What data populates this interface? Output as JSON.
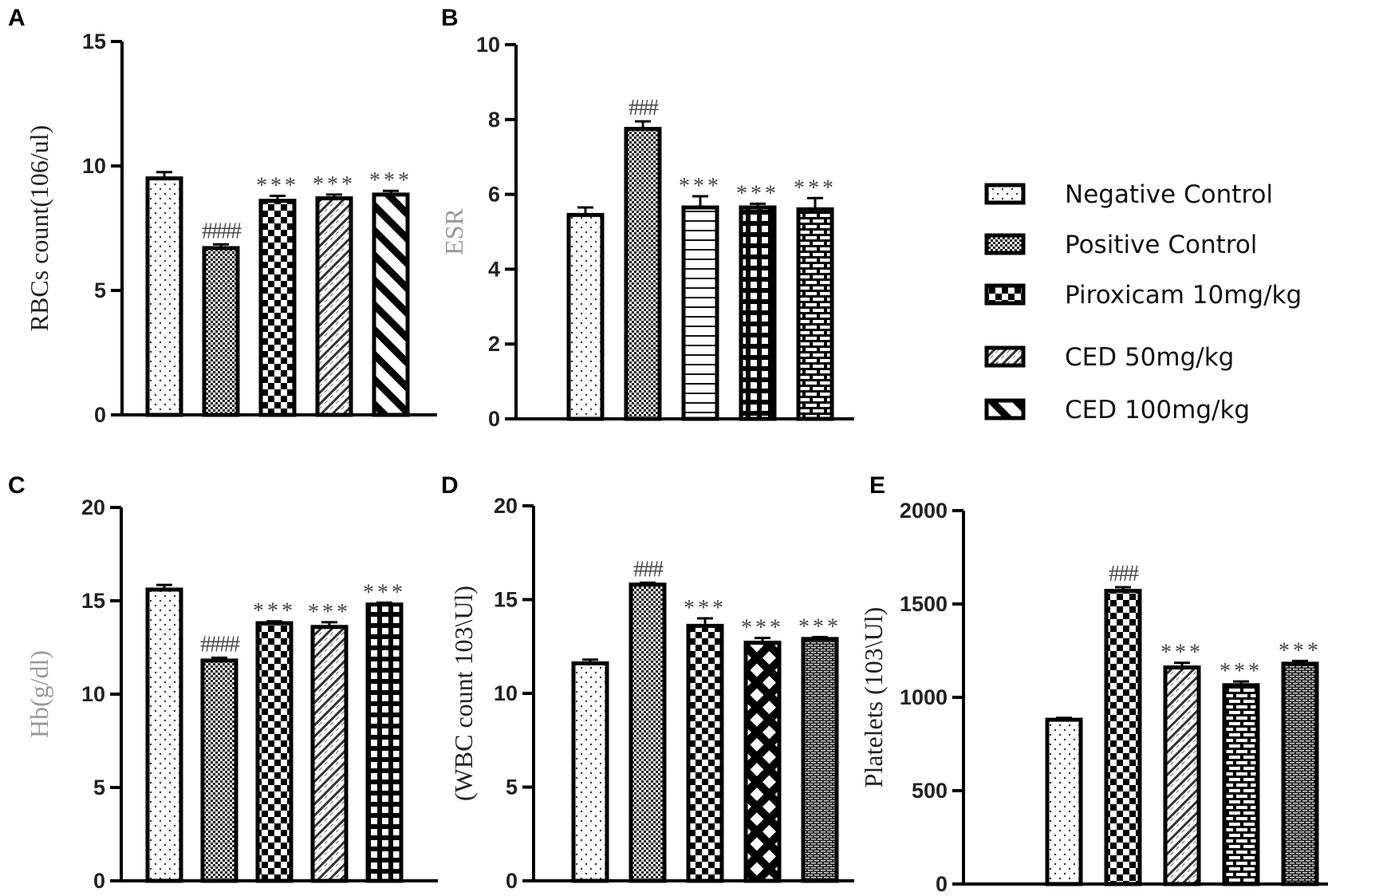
{
  "legend": [
    "Negative Control",
    "Positive Control",
    "Piroxicam 10mg/kg",
    "CED 50mg/kg",
    "CED 100mg/kg"
  ],
  "chart_data": [
    {
      "panel": "A",
      "type": "bar",
      "ylabel": "RBCs count(106/ul)",
      "ylim": [
        0,
        15
      ],
      "yticks": [
        0,
        5,
        10,
        15
      ],
      "categories": [
        "Negative Control",
        "Positive Control",
        "Piroxicam 10mg/kg",
        "CED 50mg/kg",
        "CED 100mg/kg"
      ],
      "values": [
        9.5,
        6.7,
        8.6,
        8.7,
        8.85
      ],
      "errors": [
        0.25,
        0.15,
        0.2,
        0.15,
        0.15
      ],
      "annotations": [
        "",
        "####",
        "***",
        "***",
        "***"
      ]
    },
    {
      "panel": "B",
      "type": "bar",
      "ylabel": "ESR",
      "ylim": [
        0,
        10
      ],
      "yticks": [
        0,
        2,
        4,
        6,
        8,
        10
      ],
      "categories": [
        "Negative Control",
        "Positive Control",
        "Piroxicam 10mg/kg",
        "CED 50mg/kg",
        "CED 100mg/kg"
      ],
      "values": [
        5.45,
        7.75,
        5.65,
        5.65,
        5.6
      ],
      "errors": [
        0.2,
        0.2,
        0.3,
        0.1,
        0.3
      ],
      "annotations": [
        "",
        "###",
        "***",
        "***",
        "***"
      ]
    },
    {
      "panel": "C",
      "type": "bar",
      "ylabel": "Hb(g/dl)",
      "ylim": [
        0,
        20
      ],
      "yticks": [
        0,
        5,
        10,
        15,
        20
      ],
      "categories": [
        "Negative Control",
        "Positive Control",
        "Piroxicam 10mg/kg",
        "CED 50mg/kg",
        "CED 100mg/kg"
      ],
      "values": [
        15.6,
        11.8,
        13.8,
        13.6,
        14.8
      ],
      "errors": [
        0.25,
        0.15,
        0.1,
        0.25,
        0.1
      ],
      "annotations": [
        "",
        "####",
        "***",
        "***",
        "***"
      ]
    },
    {
      "panel": "D",
      "type": "bar",
      "ylabel": "(WBC count 103\\Ul)",
      "ylim": [
        0,
        20
      ],
      "yticks": [
        0,
        5,
        10,
        15,
        20
      ],
      "categories": [
        "Negative Control",
        "Positive Control",
        "Piroxicam 10mg/kg",
        "CED 50mg/kg",
        "CED 100mg/kg"
      ],
      "values": [
        11.6,
        15.8,
        13.6,
        12.7,
        12.9
      ],
      "errors": [
        0.2,
        0.1,
        0.4,
        0.25,
        0.1
      ],
      "annotations": [
        "",
        "###",
        "***",
        "***",
        "***"
      ]
    },
    {
      "panel": "E",
      "type": "bar",
      "ylabel": "Platelets (103\\Ul)",
      "ylim": [
        0,
        2000
      ],
      "yticks": [
        0,
        500,
        1000,
        1500,
        2000
      ],
      "categories": [
        "Negative Control",
        "Positive Control",
        "Piroxicam 10mg/kg",
        "CED 50mg/kg",
        "CED 100mg/kg"
      ],
      "values": [
        880,
        1570,
        1160,
        1065,
        1180
      ],
      "errors": [
        10,
        20,
        25,
        20,
        15
      ],
      "annotations": [
        "",
        "###",
        "***",
        "***",
        "***"
      ]
    }
  ]
}
